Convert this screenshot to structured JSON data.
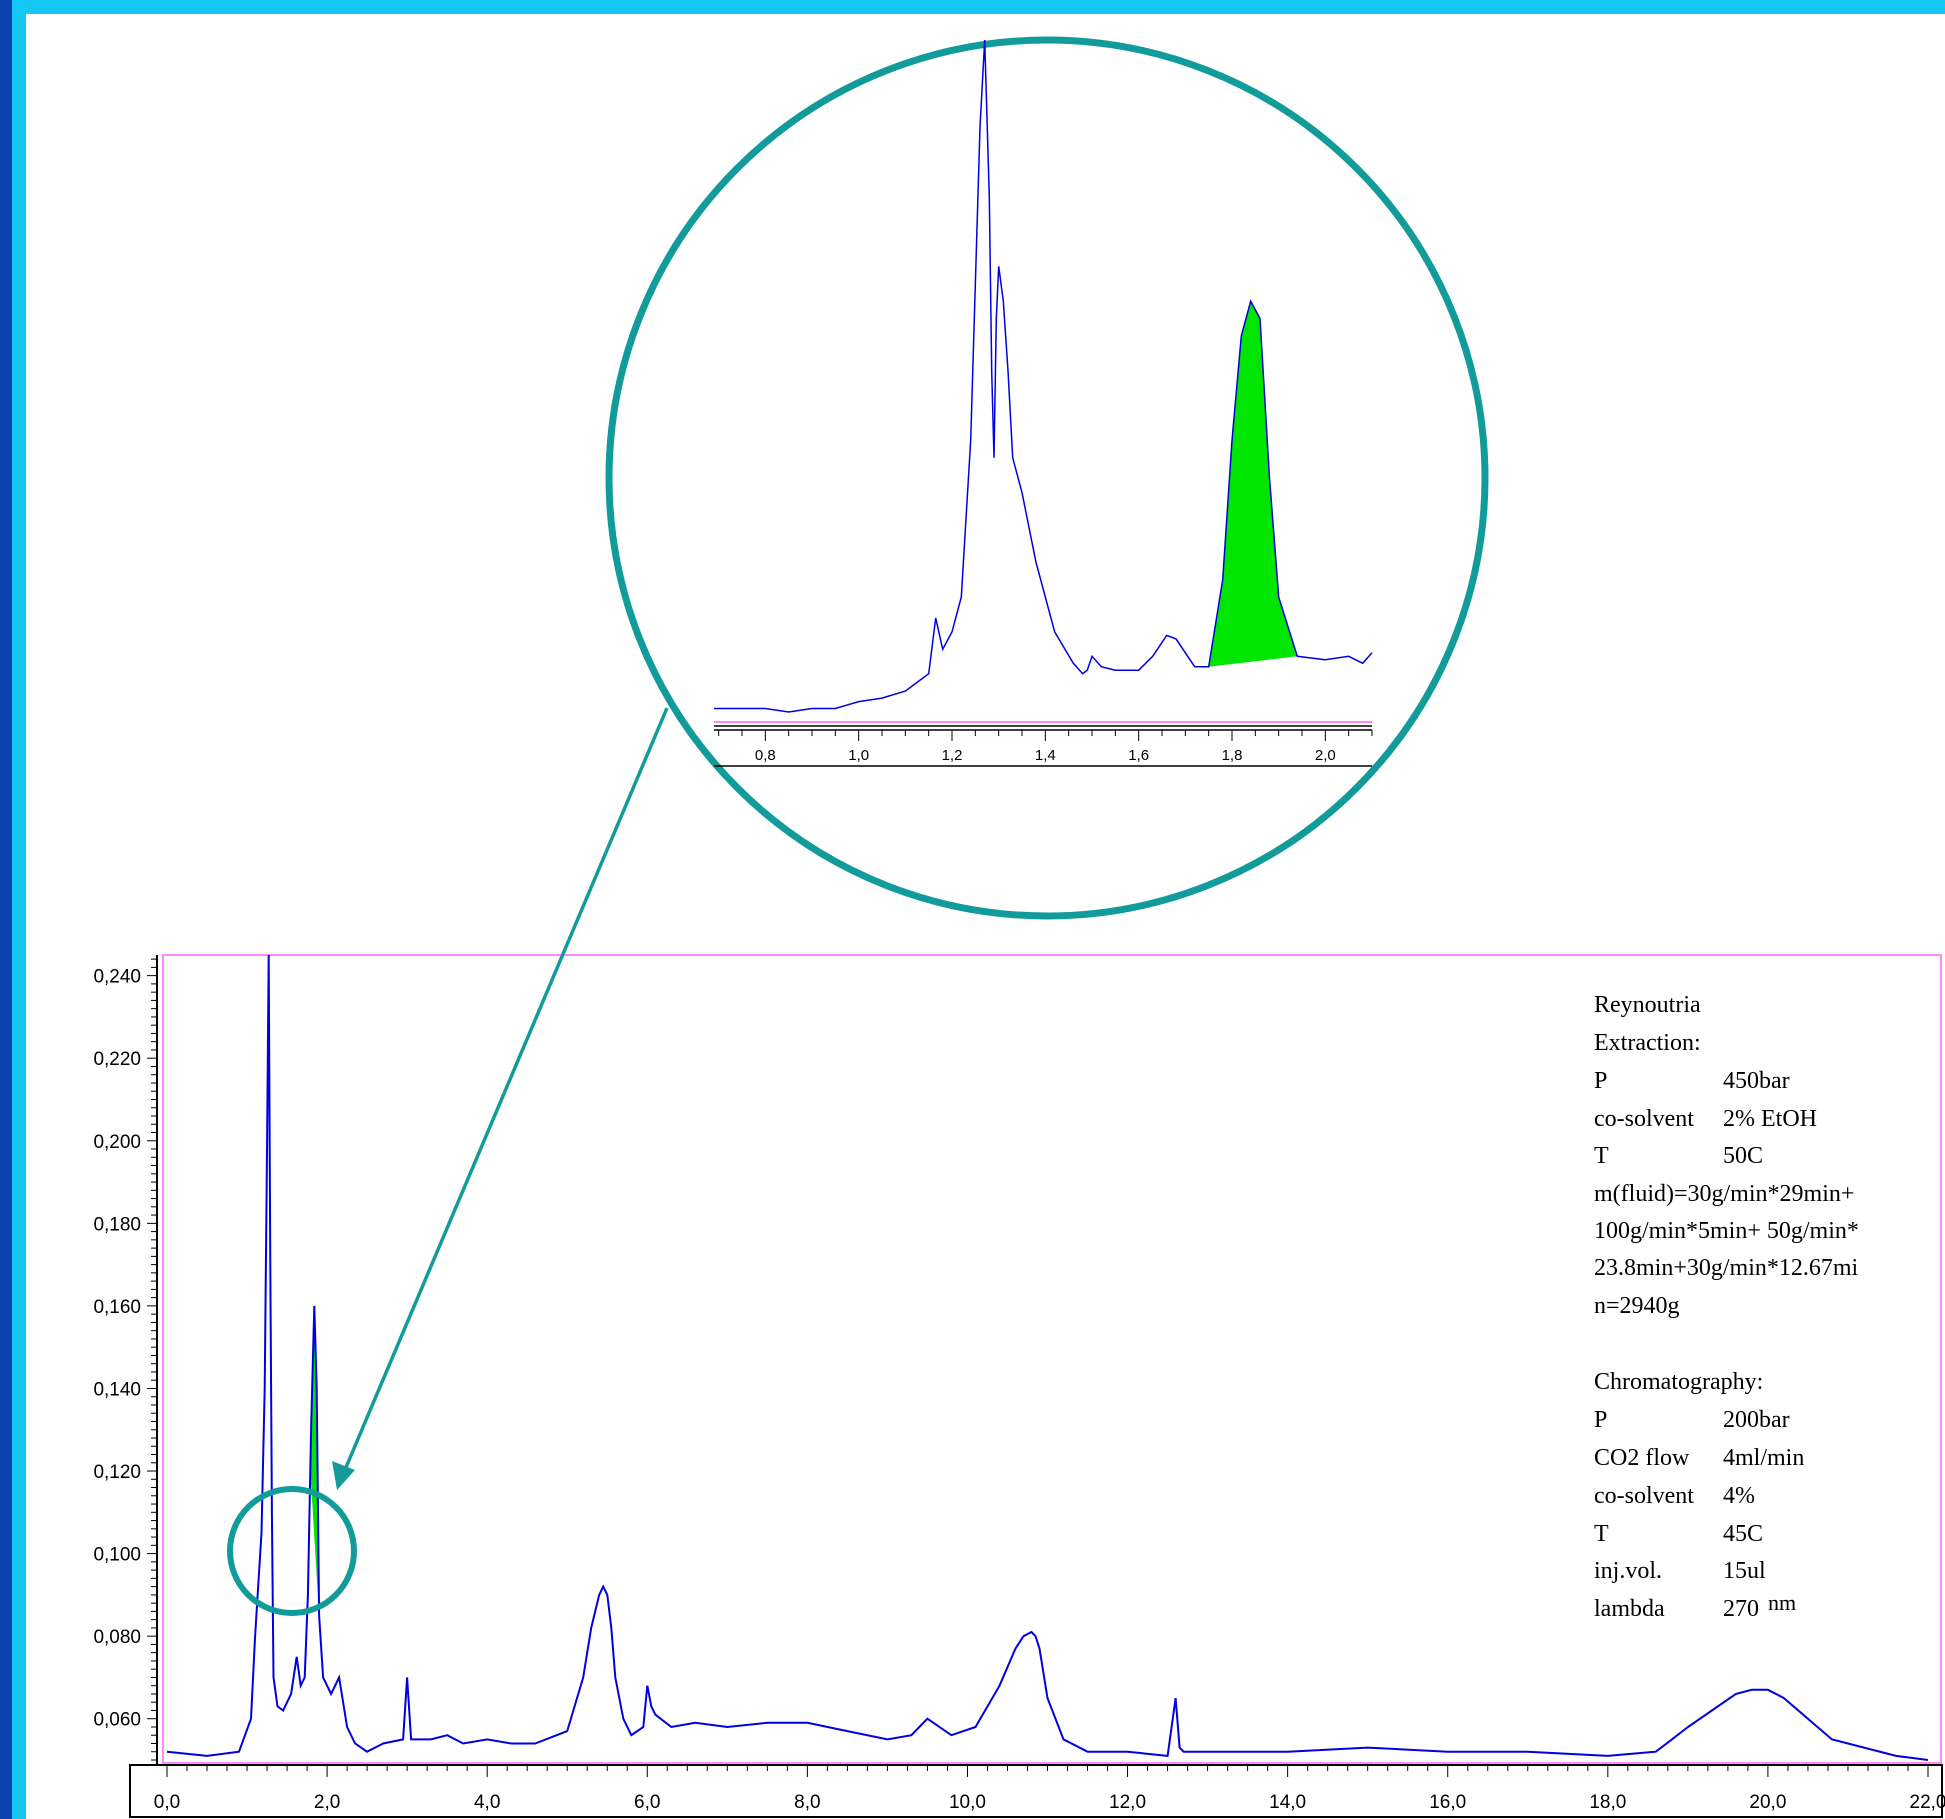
{
  "colors": {
    "frame_blue": "#0a3fb0",
    "frame_cyan": "#13c7f2",
    "trace": "#0000e0",
    "peak_fill": "#00e600",
    "callout": "#129b9b",
    "plot_border": "#ff88ff"
  },
  "chart_data": [
    {
      "type": "line",
      "title": "",
      "xlabel": "",
      "ylabel": "",
      "xlim": [
        0,
        22.3
      ],
      "ylim": [
        0.05,
        0.245
      ],
      "x_ticks": [
        "0,0",
        "2,0",
        "4,0",
        "6,0",
        "8,0",
        "10,0",
        "12,0",
        "14,0",
        "16,0",
        "18,0",
        "20,0",
        "22,0"
      ],
      "y_ticks": [
        "0,060",
        "0,080",
        "0,100",
        "0,120",
        "0,140",
        "0,160",
        "0,180",
        "0,200",
        "0,220",
        "0,240"
      ],
      "highlighted_peak": {
        "x_start": 1.79,
        "x_end": 1.9,
        "color": "green"
      },
      "series": [
        {
          "x": [
            0.0,
            0.5,
            0.9,
            1.05,
            1.1,
            1.18,
            1.22,
            1.25,
            1.27,
            1.29,
            1.31,
            1.33,
            1.38,
            1.45,
            1.55,
            1.62,
            1.67,
            1.72,
            1.76,
            1.8,
            1.84,
            1.87,
            1.9,
            1.95,
            2.05,
            2.15,
            2.25,
            2.35,
            2.5,
            2.7,
            2.95,
            3.0,
            3.05,
            3.3,
            3.5,
            3.7,
            4.0,
            4.3,
            4.6,
            5.0,
            5.2,
            5.3,
            5.4,
            5.45,
            5.5,
            5.55,
            5.6,
            5.7,
            5.8,
            5.95,
            6.0,
            6.05,
            6.1,
            6.3,
            6.6,
            7.0,
            7.5,
            8.0,
            8.5,
            9.0,
            9.3,
            9.5,
            9.8,
            10.1,
            10.4,
            10.6,
            10.7,
            10.8,
            10.85,
            10.9,
            11.0,
            11.2,
            11.5,
            12.0,
            12.5,
            12.6,
            12.65,
            12.7,
            13.0,
            14.0,
            15.0,
            16.0,
            17.0,
            18.0,
            18.6,
            18.8,
            19.0,
            19.3,
            19.6,
            19.8,
            20.0,
            20.2,
            20.5,
            20.8,
            21.2,
            21.6,
            22.0
          ],
          "y": [
            0.052,
            0.051,
            0.052,
            0.06,
            0.08,
            0.105,
            0.14,
            0.2,
            0.245,
            0.17,
            0.11,
            0.07,
            0.063,
            0.062,
            0.066,
            0.075,
            0.068,
            0.07,
            0.09,
            0.13,
            0.16,
            0.14,
            0.085,
            0.07,
            0.066,
            0.07,
            0.058,
            0.054,
            0.052,
            0.054,
            0.055,
            0.07,
            0.055,
            0.055,
            0.056,
            0.054,
            0.055,
            0.054,
            0.054,
            0.057,
            0.07,
            0.082,
            0.09,
            0.092,
            0.09,
            0.082,
            0.07,
            0.06,
            0.056,
            0.058,
            0.068,
            0.063,
            0.061,
            0.058,
            0.059,
            0.058,
            0.059,
            0.059,
            0.057,
            0.055,
            0.056,
            0.06,
            0.056,
            0.058,
            0.068,
            0.077,
            0.08,
            0.081,
            0.08,
            0.077,
            0.065,
            0.055,
            0.052,
            0.052,
            0.051,
            0.065,
            0.053,
            0.052,
            0.052,
            0.052,
            0.053,
            0.052,
            0.052,
            0.051,
            0.052,
            0.055,
            0.058,
            0.062,
            0.066,
            0.067,
            0.067,
            0.065,
            0.06,
            0.055,
            0.053,
            0.051,
            0.05
          ]
        }
      ],
      "legend_text": {
        "sample": "Reynoutria",
        "extraction_head": "Extraction:",
        "e_p_label": "P",
        "e_p_value": "450bar",
        "e_cosolvent_label": "co-solvent",
        "e_cosolvent_value": "2% EtOH",
        "e_t_label": "T",
        "e_t_value": "50C",
        "mfluid_1": "m(fluid)=30g/min*29min+",
        "mfluid_2": "100g/min*5min+ 50g/min*",
        "mfluid_3": "23.8min+30g/min*12.67mi",
        "mfluid_4": "n=2940g",
        "chrom_head": "Chromatography:",
        "c_p_label": "P",
        "c_p_value": "200bar",
        "c_flow_label": "CO2 flow",
        "c_flow_value": "4ml/min",
        "c_cosolvent_label": "co-solvent",
        "c_cosolvent_value": "4%",
        "c_t_label": "T",
        "c_t_value": "45C",
        "c_inj_label": "inj.vol.",
        "c_inj_value": "15ul",
        "c_lambda_label": "lambda",
        "c_lambda_value": "270",
        "c_lambda_unit": "nm"
      }
    },
    {
      "type": "line",
      "title": "",
      "xlabel": "",
      "ylabel": "",
      "xlim": [
        0.69,
        2.1
      ],
      "x_ticks": [
        "0,8",
        "1,0",
        "1,2",
        "1,4",
        "1,6",
        "1,8",
        "2,0"
      ],
      "highlighted_peak": {
        "x_start": 1.75,
        "x_end": 1.94,
        "color": "green"
      },
      "series": [
        {
          "x": [
            0.69,
            0.75,
            0.8,
            0.85,
            0.9,
            0.95,
            1.0,
            1.05,
            1.1,
            1.12,
            1.15,
            1.165,
            1.18,
            1.2,
            1.22,
            1.24,
            1.26,
            1.27,
            1.28,
            1.285,
            1.29,
            1.295,
            1.3,
            1.31,
            1.32,
            1.33,
            1.35,
            1.38,
            1.42,
            1.46,
            1.48,
            1.49,
            1.5,
            1.52,
            1.55,
            1.6,
            1.63,
            1.66,
            1.68,
            1.72,
            1.75,
            1.78,
            1.8,
            1.82,
            1.84,
            1.86,
            1.88,
            1.9,
            1.94,
            2.0,
            2.05,
            2.08,
            2.1
          ],
          "y": [
            0.053,
            0.053,
            0.053,
            0.052,
            0.053,
            0.053,
            0.055,
            0.056,
            0.058,
            0.06,
            0.063,
            0.079,
            0.07,
            0.075,
            0.085,
            0.13,
            0.22,
            0.245,
            0.2,
            0.15,
            0.125,
            0.165,
            0.18,
            0.17,
            0.15,
            0.125,
            0.115,
            0.095,
            0.075,
            0.066,
            0.063,
            0.064,
            0.068,
            0.065,
            0.064,
            0.064,
            0.068,
            0.074,
            0.073,
            0.065,
            0.065,
            0.09,
            0.13,
            0.16,
            0.17,
            0.165,
            0.12,
            0.085,
            0.068,
            0.067,
            0.068,
            0.066,
            0.069
          ]
        }
      ]
    }
  ]
}
